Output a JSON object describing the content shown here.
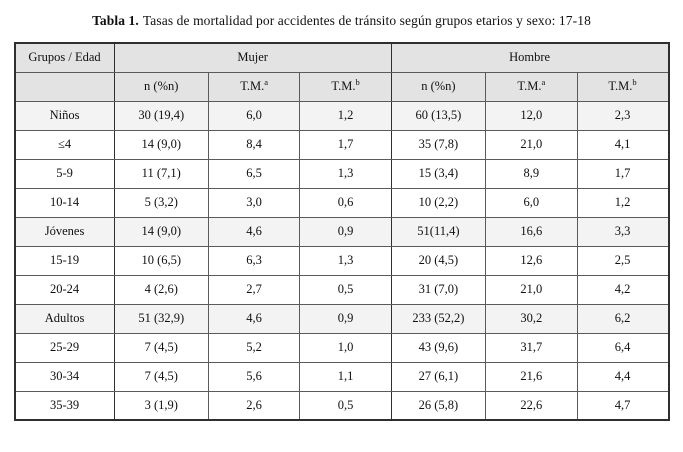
{
  "title": {
    "label": "Tabla 1.",
    "text": "Tasas de mortalidad por accidentes de tránsito según grupos etarios y sexo: 17-18"
  },
  "table": {
    "corner_header": "Grupos / Edad",
    "group_headers": [
      "Mujer",
      "Hombre"
    ],
    "sub_headers": [
      {
        "label": "n (%n)",
        "sup": ""
      },
      {
        "label": "T.M.",
        "sup": "a"
      },
      {
        "label": "T.M.",
        "sup": "b"
      },
      {
        "label": "n (%n)",
        "sup": ""
      },
      {
        "label": "T.M.",
        "sup": "a"
      },
      {
        "label": "T.M.",
        "sup": "b"
      }
    ],
    "rows": [
      {
        "group": true,
        "label": "Niños",
        "values": [
          "30 (19,4)",
          "6,0",
          "1,2",
          "60 (13,5)",
          "12,0",
          "2,3"
        ]
      },
      {
        "group": false,
        "label": "≤4",
        "values": [
          "14 (9,0)",
          "8,4",
          "1,7",
          "35 (7,8)",
          "21,0",
          "4,1"
        ]
      },
      {
        "group": false,
        "label": "5-9",
        "values": [
          "11 (7,1)",
          "6,5",
          "1,3",
          "15 (3,4)",
          "8,9",
          "1,7"
        ]
      },
      {
        "group": false,
        "label": "10-14",
        "values": [
          "5 (3,2)",
          "3,0",
          "0,6",
          "10 (2,2)",
          "6,0",
          "1,2"
        ]
      },
      {
        "group": true,
        "label": "Jóvenes",
        "values": [
          "14 (9,0)",
          "4,6",
          "0,9",
          "51(11,4)",
          "16,6",
          "3,3"
        ]
      },
      {
        "group": false,
        "label": "15-19",
        "values": [
          "10 (6,5)",
          "6,3",
          "1,3",
          "20 (4,5)",
          "12,6",
          "2,5"
        ]
      },
      {
        "group": false,
        "label": "20-24",
        "values": [
          "4 (2,6)",
          "2,7",
          "0,5",
          "31 (7,0)",
          "21,0",
          "4,2"
        ]
      },
      {
        "group": true,
        "label": "Adultos",
        "values": [
          "51 (32,9)",
          "4,6",
          "0,9",
          "233 (52,2)",
          "30,2",
          "6,2"
        ]
      },
      {
        "group": false,
        "label": "25-29",
        "values": [
          "7 (4,5)",
          "5,2",
          "1,0",
          "43 (9,6)",
          "31,7",
          "6,4"
        ]
      },
      {
        "group": false,
        "label": "30-34",
        "values": [
          "7 (4,5)",
          "5,6",
          "1,1",
          "27 (6,1)",
          "21,6",
          "4,4"
        ]
      },
      {
        "group": false,
        "label": "35-39",
        "values": [
          "3 (1,9)",
          "2,6",
          "0,5",
          "26 (5,8)",
          "22,6",
          "4,7"
        ]
      }
    ]
  },
  "colors": {
    "header_bg": "#e3e3e3",
    "group_row_bg": "#f3f3f3",
    "border": "#5a5a5a",
    "outer_border": "#2f2f2f",
    "text": "#101010",
    "page_bg": "#ffffff"
  }
}
